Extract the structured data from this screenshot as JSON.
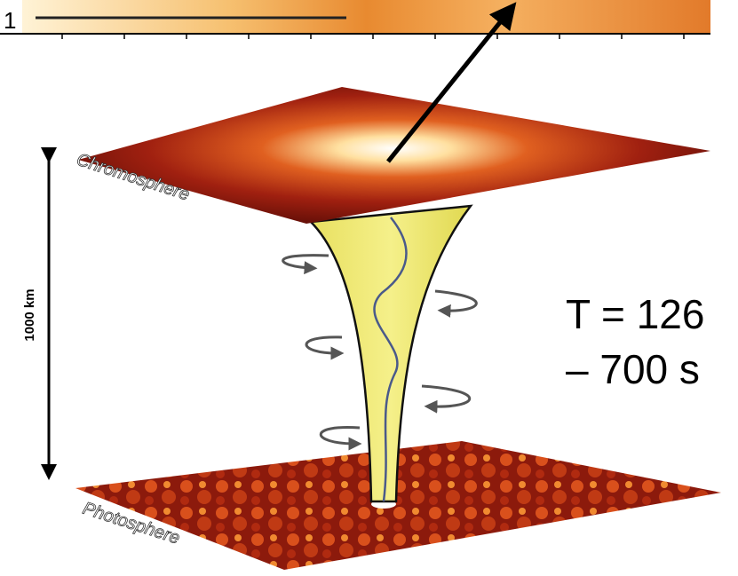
{
  "header": {
    "scale_label": "1"
  },
  "labels": {
    "chromosphere": "Chromosphere",
    "photosphere": "Photosphere",
    "height": "1000 km",
    "period_line1": "T = 126",
    "period_line2": "– 700 s"
  }
}
